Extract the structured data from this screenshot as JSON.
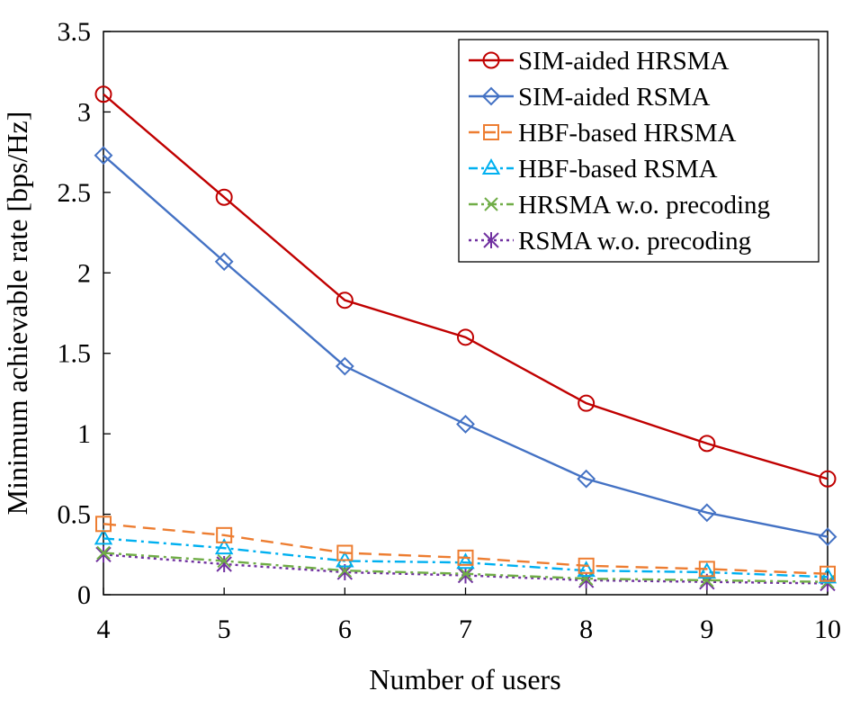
{
  "chart_data": {
    "type": "line",
    "title": "",
    "xlabel": "Number of users",
    "ylabel": "Minimum achievable rate [bps/Hz]",
    "x": [
      4,
      5,
      6,
      7,
      8,
      9,
      10
    ],
    "xlim": [
      4,
      10
    ],
    "ylim": [
      0,
      3.5
    ],
    "xticks": [
      "4",
      "5",
      "6",
      "7",
      "8",
      "9",
      "10"
    ],
    "yticks": [
      "0",
      "0.5",
      "1",
      "1.5",
      "2",
      "2.5",
      "3",
      "3.5"
    ],
    "legend_position": "top-right",
    "series": [
      {
        "name": "SIM-aided HRSMA",
        "values": [
          3.11,
          2.47,
          1.83,
          1.6,
          1.19,
          0.94,
          0.72
        ],
        "color": "#c00000",
        "marker": "circle",
        "dash": "solid"
      },
      {
        "name": "SIM-aided RSMA",
        "values": [
          2.73,
          2.07,
          1.42,
          1.06,
          0.72,
          0.51,
          0.36
        ],
        "color": "#4472c4",
        "marker": "diamond",
        "dash": "solid"
      },
      {
        "name": "HBF-based HRSMA",
        "values": [
          0.44,
          0.37,
          0.26,
          0.23,
          0.18,
          0.16,
          0.13
        ],
        "color": "#ed7d31",
        "marker": "square",
        "dash": "dash"
      },
      {
        "name": "HBF-based RSMA",
        "values": [
          0.35,
          0.29,
          0.21,
          0.2,
          0.15,
          0.14,
          0.11
        ],
        "color": "#00b0f0",
        "marker": "triangle",
        "dash": "dashdot"
      },
      {
        "name": "HRSMA w.o. precoding",
        "values": [
          0.26,
          0.21,
          0.15,
          0.13,
          0.1,
          0.09,
          0.08
        ],
        "color": "#70ad47",
        "marker": "x",
        "dash": "dashdot"
      },
      {
        "name": "RSMA w.o. precoding",
        "values": [
          0.25,
          0.19,
          0.14,
          0.12,
          0.09,
          0.08,
          0.07
        ],
        "color": "#7030a0",
        "marker": "star",
        "dash": "dot"
      }
    ]
  }
}
